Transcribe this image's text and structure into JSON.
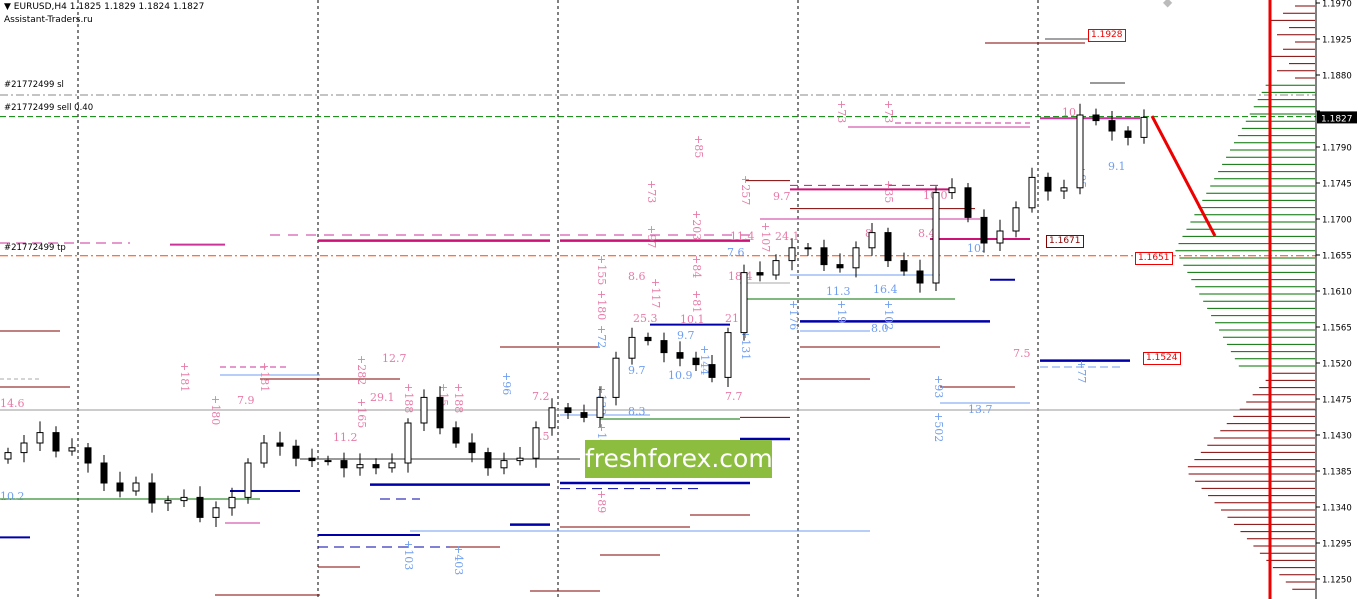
{
  "header": {
    "symbol_icon": "triangle-down-icon",
    "title": "EURUSD,H4",
    "ohlc": "1.1825 1.1829 1.1824 1.1827",
    "subtitle": "Assistant-Traders.ru"
  },
  "orders": {
    "sl_label": "#21772499 sl",
    "sell_label": "#21772499 sell 0.40",
    "tp_label": "#21772499 tp"
  },
  "price_boxes": [
    "1.1928",
    "1.1671",
    "1.1651",
    "1.1524"
  ],
  "watermark": "freshforex.com",
  "colors": {
    "bull": "#ffffff",
    "bear": "#000000",
    "sell_line": "#008000",
    "tp_line": "#ff4500",
    "marker_red": "#ff0000",
    "profile_green": "#007000",
    "profile_red": "#800000",
    "label_pink": "#e87aa8",
    "label_blue": "#6f9ef0"
  },
  "annotations": [
    "14.6",
    "10.2",
    "7.9",
    "+180",
    "+181",
    "+181",
    "11.2",
    "+165",
    "+282",
    "12.7",
    "29.1",
    "+188",
    "+15",
    "+188",
    "+96",
    "7.2",
    "8.5",
    "+138",
    "+148",
    "+72",
    "+180",
    "+155",
    "8.6",
    "25.3",
    "+117",
    "9.7",
    "8.3",
    "+89",
    "10.1",
    "9.7",
    "10.9",
    "+144",
    "+81",
    "+84",
    "+203",
    "+97",
    "+73",
    "+85",
    "21",
    "18.4",
    "7.6",
    "11.4",
    "+107",
    "+257",
    "9.7",
    "7.7",
    "+131",
    "24.1",
    "+176",
    "11.3",
    "+19",
    "16.4",
    "+102",
    "8.0",
    "8",
    "8.4",
    "+73",
    "+73",
    "10.0",
    "+35",
    "10.",
    "+93",
    "+502",
    "13.7",
    "7.5",
    "+95",
    "9.1",
    "+77",
    "10",
    "+103",
    "+403"
  ],
  "chart_data": {
    "type": "candlestick",
    "symbol": "EURUSD",
    "timeframe": "H4",
    "closes": [
      1.1408,
      1.142,
      1.1433,
      1.141,
      1.1414,
      1.1395,
      1.137,
      1.136,
      1.137,
      1.1345,
      1.1348,
      1.1352,
      1.1327,
      1.1339,
      1.1352,
      1.1395,
      1.142,
      1.1416,
      1.1401,
      1.1398,
      1.1398,
      1.1389,
      1.1393,
      1.1389,
      1.1395,
      1.1445,
      1.1477,
      1.1439,
      1.142,
      1.1408,
      1.1389,
      1.1398,
      1.1401,
      1.1439,
      1.1464,
      1.1458,
      1.1452,
      1.1477,
      1.1526,
      1.1552,
      1.1548,
      1.1533,
      1.1526,
      1.1518,
      1.1502,
      1.1558,
      1.1633,
      1.163,
      1.1648,
      1.1664,
      1.1664,
      1.1643,
      1.1639,
      1.1664,
      1.1683,
      1.1648,
      1.1635,
      1.162,
      1.1733,
      1.1739,
      1.1702,
      1.167,
      1.1685,
      1.1714,
      1.1752,
      1.1735,
      1.1739,
      1.183,
      1.1823,
      1.181,
      1.1802,
      1.1827
    ],
    "y_axis_ticks": [
      "1.1970",
      "1.1925",
      "1.1880",
      "1.1835",
      "1.1790",
      "1.1745",
      "1.1700",
      "1.1655",
      "1.1610",
      "1.1565",
      "1.1520",
      "1.1475",
      "1.1430",
      "1.1385",
      "1.1340",
      "1.1295",
      "1.1250"
    ],
    "current_price": "1.1827",
    "ylim": [
      1.1228,
      1.1974
    ],
    "levels": {
      "sl": 1.1855,
      "sell": 1.1828,
      "tp": 1.1654
    }
  }
}
